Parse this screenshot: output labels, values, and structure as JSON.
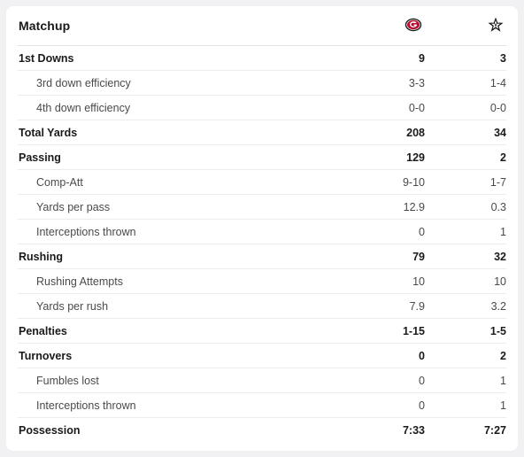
{
  "header": {
    "title": "Matchup",
    "home_team_icon": "georgia-g-logo-icon",
    "away_team_icon": "vanderbilt-star-logo-icon"
  },
  "colors": {
    "georgia_red": "#ba0c2f",
    "vanderbilt_black": "#1a1a1a"
  },
  "rows": [
    {
      "label": "1st Downs",
      "home": "9",
      "away": "3",
      "kind": "main"
    },
    {
      "label": "3rd down efficiency",
      "home": "3-3",
      "away": "1-4",
      "kind": "sub"
    },
    {
      "label": "4th down efficiency",
      "home": "0-0",
      "away": "0-0",
      "kind": "sub"
    },
    {
      "label": "Total Yards",
      "home": "208",
      "away": "34",
      "kind": "main"
    },
    {
      "label": "Passing",
      "home": "129",
      "away": "2",
      "kind": "main"
    },
    {
      "label": "Comp-Att",
      "home": "9-10",
      "away": "1-7",
      "kind": "sub"
    },
    {
      "label": "Yards per pass",
      "home": "12.9",
      "away": "0.3",
      "kind": "sub"
    },
    {
      "label": "Interceptions thrown",
      "home": "0",
      "away": "1",
      "kind": "sub"
    },
    {
      "label": "Rushing",
      "home": "79",
      "away": "32",
      "kind": "main"
    },
    {
      "label": "Rushing Attempts",
      "home": "10",
      "away": "10",
      "kind": "sub"
    },
    {
      "label": "Yards per rush",
      "home": "7.9",
      "away": "3.2",
      "kind": "sub"
    },
    {
      "label": "Penalties",
      "home": "1-15",
      "away": "1-5",
      "kind": "main"
    },
    {
      "label": "Turnovers",
      "home": "0",
      "away": "2",
      "kind": "main"
    },
    {
      "label": "Fumbles lost",
      "home": "0",
      "away": "1",
      "kind": "sub"
    },
    {
      "label": "Interceptions thrown",
      "home": "0",
      "away": "1",
      "kind": "sub"
    },
    {
      "label": "Possession",
      "home": "7:33",
      "away": "7:27",
      "kind": "main"
    }
  ]
}
